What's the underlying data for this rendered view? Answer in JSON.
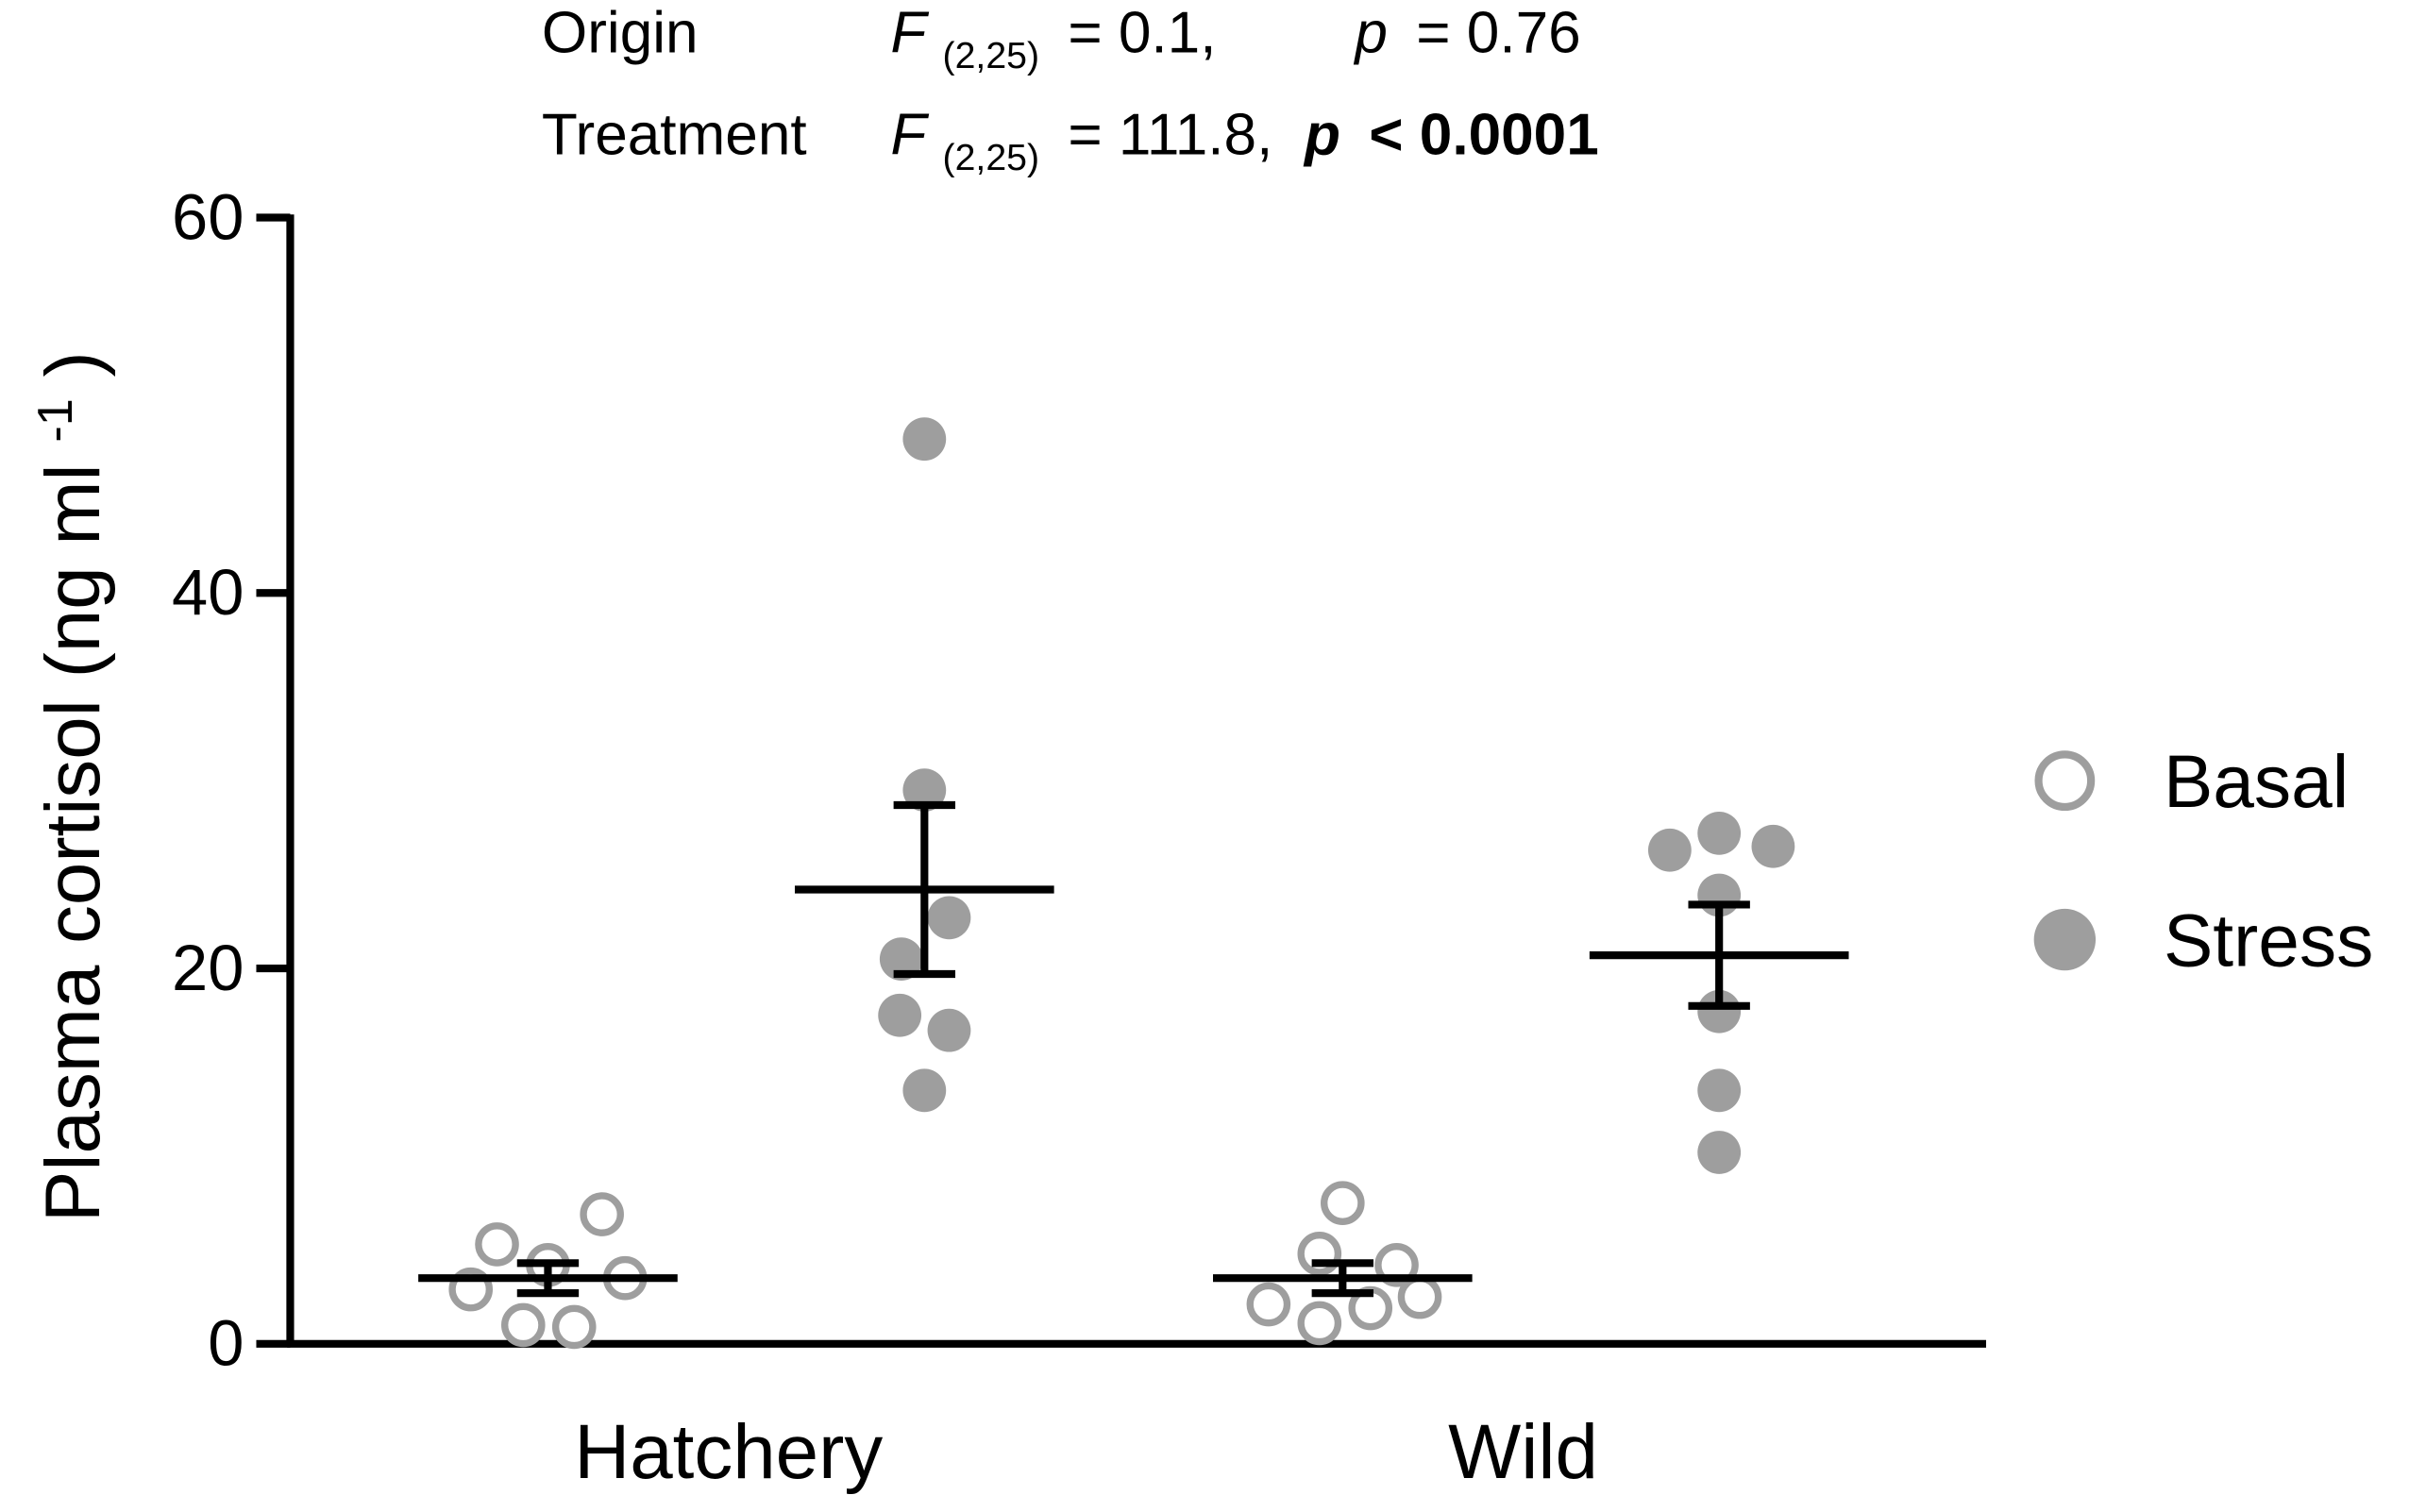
{
  "chart_data": {
    "type": "dot",
    "annotations": [
      [
        "Origin",
        "F",
        "(2,25)",
        "= 0.1,",
        "p",
        "= 0.76"
      ],
      [
        "Treatment",
        "F",
        "(2,25)",
        "= 111.8,",
        "p",
        "< 0.0001"
      ]
    ],
    "ylabel": [
      "Plasma cortisol (ng ml",
      "-1",
      ")"
    ],
    "categories": [
      "Hatchery",
      "Wild"
    ],
    "series": [
      {
        "name": "Basal",
        "color": "#9e9e9e",
        "filled": false,
        "values": [
          [
            5.3,
            4.2,
            6.9,
            2.9,
            3.5,
            1.0,
            0.9
          ],
          [
            7.5,
            4.8,
            4.2,
            2.1,
            1.1,
            1.9,
            2.5
          ]
        ],
        "mean": [
          3.5,
          3.5
        ],
        "sem": [
          0.8,
          0.8
        ]
      },
      {
        "name": "Stress",
        "color": "#9e9e9e",
        "filled": true,
        "values": [
          [
            48.2,
            29.5,
            20.5,
            22.7,
            17.5,
            16.7,
            13.5
          ],
          [
            26.3,
            27.2,
            26.5,
            23.9,
            17.7,
            13.5,
            10.2
          ]
        ],
        "mean": [
          24.2,
          20.7
        ],
        "sem": [
          4.5,
          2.7
        ]
      }
    ],
    "ylim": [
      0,
      60
    ],
    "yticks": [
      0,
      20,
      40,
      60
    ],
    "legend": "right"
  }
}
